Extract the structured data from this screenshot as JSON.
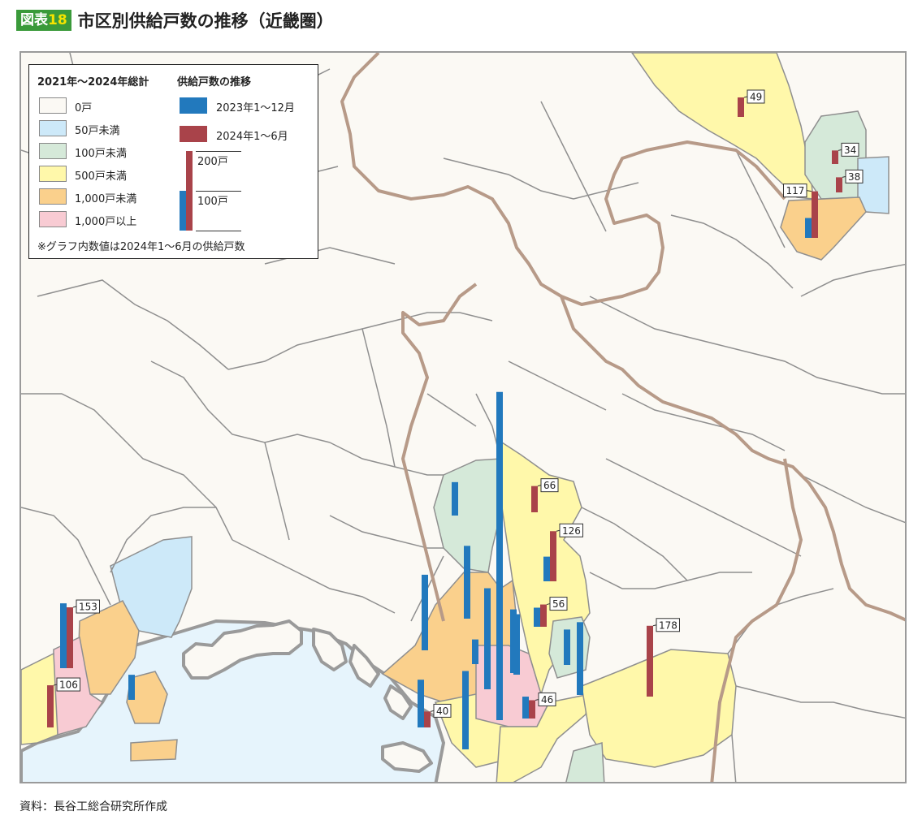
{
  "header": {
    "badge_prefix": "図表",
    "badge_number": "18",
    "title": "市区別供給戸数の推移（近畿圏）"
  },
  "legend": {
    "total_heading": "2021年〜2024年総計",
    "trend_heading": "供給戸数の推移",
    "categories": [
      {
        "label": "0戸",
        "color": "#fbf9f4"
      },
      {
        "label": "50戸未満",
        "color": "#cde9f9"
      },
      {
        "label": "100戸未満",
        "color": "#d5e9d9"
      },
      {
        "label": "500戸未満",
        "color": "#fff8aa"
      },
      {
        "label": "1,000戸未満",
        "color": "#fad08c"
      },
      {
        "label": "1,000戸以上",
        "color": "#f8cbd3"
      }
    ],
    "series": [
      {
        "label": "2023年1〜12月",
        "color": "#2279bd"
      },
      {
        "label": "2024年1〜6月",
        "color": "#a9434a"
      }
    ],
    "scale_200": "200戸",
    "scale_100": "100戸",
    "note": "※グラフ内数値は2024年1〜6月の供給戸数"
  },
  "source": "資料：長谷工総合研究所作成",
  "colors": {
    "sea": "#e6f4fc",
    "land": "#fbf9f4",
    "border": "#8f8f8f",
    "pref_border": "#b79a88",
    "coast": "#9a9a9a",
    "bar_2023": "#2279bd",
    "bar_2024": "#a9434a"
  },
  "map_data": {
    "unit": "戸",
    "bars": [
      {
        "id": "ne-top",
        "v2023": null,
        "v2024": 49,
        "label": "49"
      },
      {
        "id": "ne-mid",
        "v2023": null,
        "v2024": 34,
        "label": "34"
      },
      {
        "id": "ne-mid2",
        "v2023": null,
        "v2024": 38,
        "label": "38"
      },
      {
        "id": "ne-south",
        "v2023": 50,
        "v2024": 117,
        "label": "117"
      },
      {
        "id": "kobe-west",
        "v2023": 163,
        "v2024": 153,
        "label": "153"
      },
      {
        "id": "akashi",
        "v2023": null,
        "v2024": 106,
        "label": "106"
      },
      {
        "id": "awaji",
        "v2023": 63,
        "v2024": null,
        "label": ""
      },
      {
        "id": "nishinomiya",
        "v2023": 190,
        "v2024": null,
        "label": ""
      },
      {
        "id": "osaka-nw",
        "v2023": 84,
        "v2024": null,
        "label": ""
      },
      {
        "id": "osaka-n",
        "v2023": 183,
        "v2024": null,
        "label": ""
      },
      {
        "id": "osaka-mid",
        "v2023": 62,
        "v2024": null,
        "label": ""
      },
      {
        "id": "osaka-c1",
        "v2023": 254,
        "v2024": null,
        "label": ""
      },
      {
        "id": "osaka-c2",
        "v2023": 825,
        "v2024": null,
        "label": ""
      },
      {
        "id": "osaka-c3",
        "v2023": 152,
        "v2024": null,
        "label": ""
      },
      {
        "id": "sakai-w",
        "v2023": 160,
        "v2024": null,
        "label": ""
      },
      {
        "id": "kobe-c",
        "v2023": 120,
        "v2024": 40,
        "label": "40"
      },
      {
        "id": "sakai-s",
        "v2023": 197,
        "v2024": null,
        "label": ""
      },
      {
        "id": "takatsuki",
        "v2023": null,
        "v2024": 66,
        "label": "66"
      },
      {
        "id": "hirakata",
        "v2023": 62,
        "v2024": 126,
        "label": "126"
      },
      {
        "id": "moriguchi",
        "v2023": 48,
        "v2024": 56,
        "label": "56"
      },
      {
        "id": "higashiosaka",
        "v2023": 89,
        "v2024": null,
        "label": ""
      },
      {
        "id": "osaka-e",
        "v2023": 183,
        "v2024": null,
        "label": ""
      },
      {
        "id": "yao",
        "v2023": 55,
        "v2024": 46,
        "label": "46"
      },
      {
        "id": "nara",
        "v2023": null,
        "v2024": 178,
        "label": "178"
      }
    ]
  }
}
